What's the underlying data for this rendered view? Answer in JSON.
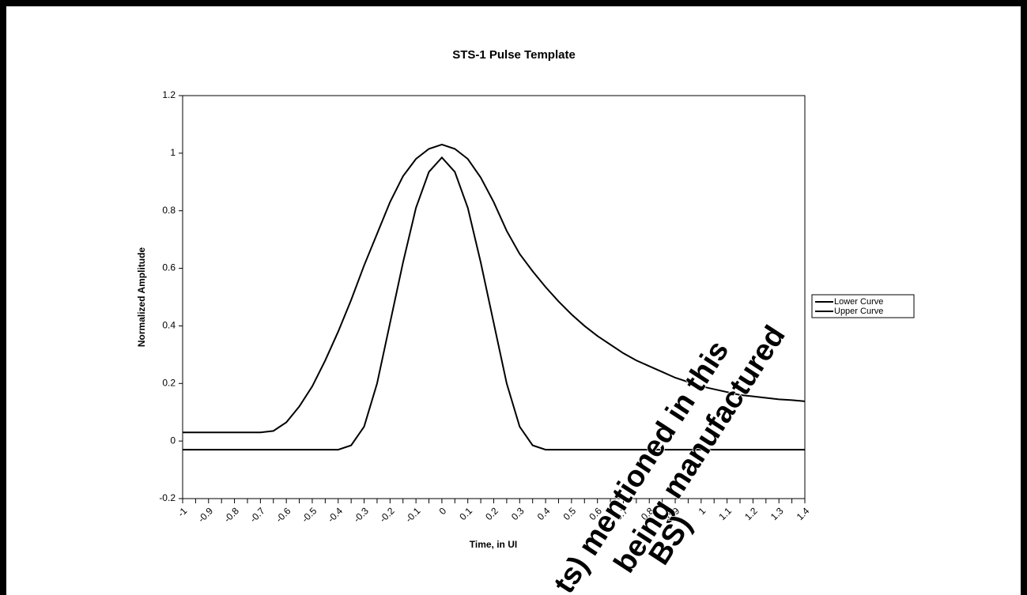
{
  "chart_data": {
    "type": "line",
    "title": "STS-1 Pulse Template",
    "x_label": "Time, in UI",
    "y_label": "Normalized Amplitude",
    "categories": [
      "-1",
      null,
      "-0.9",
      null,
      "-0.8",
      null,
      "-0.7",
      null,
      "-0.6",
      null,
      "-0.5",
      null,
      "-0.4",
      null,
      "-0.3",
      null,
      "-0.2",
      null,
      "-0.1",
      null,
      "0",
      null,
      "0.1",
      null,
      "0.2",
      null,
      "0.3",
      null,
      "0.4",
      null,
      "0.5",
      null,
      "0.6",
      null,
      "0.7",
      null,
      "0.8",
      null,
      "0.9",
      null,
      "1",
      null,
      "1.1",
      null,
      "1.2",
      null,
      "1.3",
      null,
      "1.4"
    ],
    "series": [
      {
        "name": "Lower Curve",
        "color": "#000000",
        "values": [
          -0.03,
          -0.03,
          -0.03,
          -0.03,
          -0.03,
          -0.03,
          -0.03,
          -0.03,
          -0.03,
          -0.03,
          -0.03,
          -0.03,
          -0.03,
          -0.015,
          0.05,
          0.2,
          0.41,
          0.62,
          0.81,
          0.935,
          0.985,
          0.935,
          0.81,
          0.62,
          0.41,
          0.2,
          0.05,
          -0.015,
          -0.03,
          -0.03,
          -0.03,
          -0.03,
          -0.03,
          -0.03,
          -0.03,
          -0.03,
          -0.03,
          -0.03,
          -0.03,
          -0.03,
          -0.03,
          -0.03,
          -0.03,
          -0.03,
          -0.03,
          -0.03,
          -0.03,
          -0.03,
          -0.03
        ]
      },
      {
        "name": "Upper Curve",
        "color": "#000000",
        "values": [
          0.03,
          0.03,
          0.03,
          0.03,
          0.03,
          0.03,
          0.03,
          0.035,
          0.065,
          0.12,
          0.19,
          0.28,
          0.38,
          0.49,
          0.61,
          0.72,
          0.83,
          0.92,
          0.98,
          1.015,
          1.03,
          1.015,
          0.98,
          0.915,
          0.83,
          0.73,
          0.65,
          0.59,
          0.535,
          0.485,
          0.44,
          0.4,
          0.365,
          0.335,
          0.305,
          0.28,
          0.26,
          0.24,
          0.22,
          0.205,
          0.19,
          0.18,
          0.17,
          0.16,
          0.155,
          0.15,
          0.145,
          0.142,
          0.138
        ]
      }
    ],
    "ylim": [
      -0.2,
      1.2
    ],
    "yticks": [
      -0.2,
      0,
      0.2,
      0.4,
      0.6,
      0.8,
      1,
      1.2
    ],
    "legend": "right",
    "watermark": {
      "color": "#ee0000",
      "lines": [
        "ts) mentioned in this",
        "being manufactured",
        "BS)"
      ]
    }
  }
}
